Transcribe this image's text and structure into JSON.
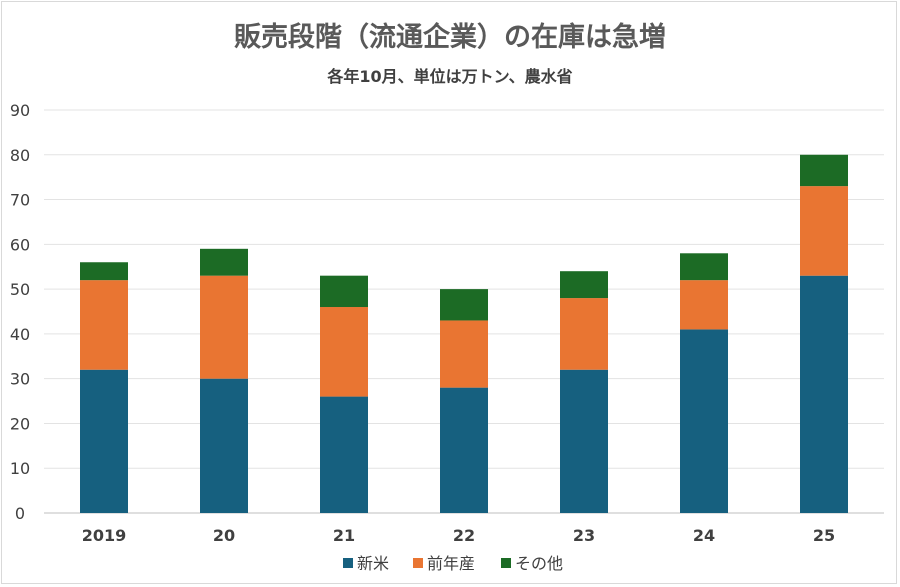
{
  "chart_data": {
    "type": "bar",
    "stacked": true,
    "title": "販売段階（流通企業）の在庫は急増",
    "subtitle": "各年10月、単位は万トン、農水省",
    "xlabel": "",
    "ylabel": "",
    "categories": [
      "2019",
      "20",
      "21",
      "22",
      "23",
      "24",
      "25"
    ],
    "series": [
      {
        "name": "新米",
        "color": "#16607f",
        "values": [
          32,
          30,
          26,
          28,
          32,
          41,
          53
        ]
      },
      {
        "name": "前年産",
        "color": "#e97532",
        "values": [
          20,
          23,
          20,
          15,
          16,
          11,
          20
        ]
      },
      {
        "name": "その他",
        "color": "#1c6b25",
        "values": [
          4,
          6,
          7,
          7,
          6,
          6,
          7
        ]
      }
    ],
    "ylim": [
      0,
      90
    ],
    "yticks": [
      0,
      10,
      20,
      30,
      40,
      50,
      60,
      70,
      80,
      90
    ],
    "grid": true,
    "legend": "bottom"
  }
}
